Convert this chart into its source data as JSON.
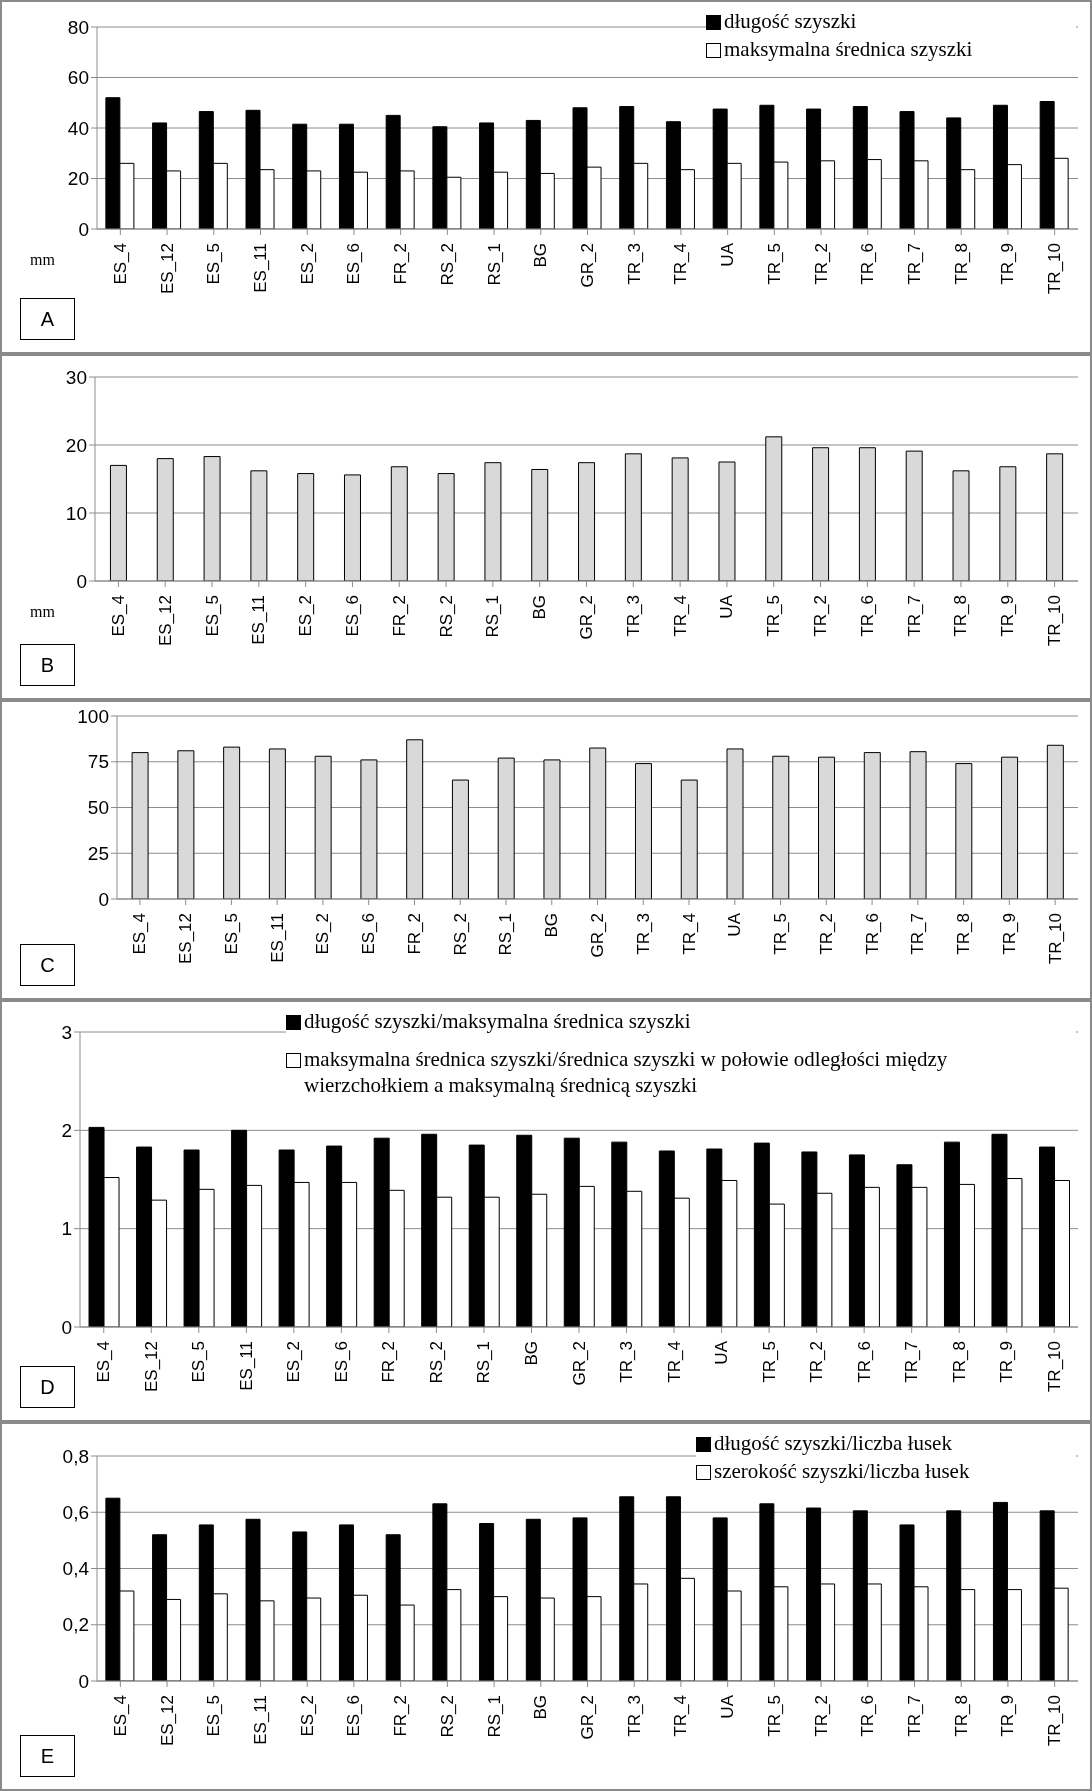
{
  "chart_data": [
    {
      "type": "bar",
      "categories": [
        "ES_4",
        "ES_12",
        "ES_5",
        "ES_11",
        "ES_2",
        "ES_6",
        "FR_2",
        "RS_2",
        "RS_1",
        "BG",
        "GR_2",
        "TR_3",
        "TR_4",
        "UA",
        "TR_5",
        "TR_2",
        "TR_6",
        "TR_7",
        "TR_8",
        "TR_9",
        "TR_10"
      ],
      "series": [
        {
          "name": "długość szyszki",
          "color": "#000000",
          "values": [
            52,
            42,
            46.5,
            47,
            41.5,
            41.5,
            45,
            40.5,
            42,
            43,
            48,
            48.5,
            42.5,
            47.5,
            49,
            47.5,
            48.5,
            46.5,
            44,
            49,
            50.5
          ]
        },
        {
          "name": "maksymalna średnica szyszki",
          "color": "#ffffff",
          "values": [
            26,
            23,
            26,
            23.5,
            23,
            22.5,
            23,
            20.5,
            22.5,
            22,
            24.5,
            26,
            23.5,
            26,
            26.5,
            27,
            27.5,
            27,
            23.5,
            25.5,
            28
          ]
        }
      ],
      "ylim": [
        0,
        80
      ],
      "yticks": [
        0,
        20,
        40,
        60,
        80
      ],
      "grid": "y",
      "legend": "top right",
      "annotations": [
        "mm",
        "A"
      ]
    },
    {
      "type": "bar",
      "categories": [
        "ES_4",
        "ES_12",
        "ES_5",
        "ES_11",
        "ES_2",
        "ES_6",
        "FR_2",
        "RS_2",
        "RS_1",
        "BG",
        "GR_2",
        "TR_3",
        "TR_4",
        "UA",
        "TR_5",
        "TR_2",
        "TR_6",
        "TR_7",
        "TR_8",
        "TR_9",
        "TR_10"
      ],
      "values": [
        17,
        18,
        18.3,
        16.2,
        15.8,
        15.6,
        16.8,
        15.8,
        17.4,
        16.4,
        17.4,
        18.7,
        18.1,
        17.5,
        21.2,
        19.6,
        19.6,
        19.1,
        16.2,
        16.8,
        18.7
      ],
      "color": "#d9d9d9",
      "ylim": [
        0,
        30
      ],
      "yticks": [
        0,
        10,
        20,
        30
      ],
      "grid": "y",
      "annotations": [
        "mm",
        "B"
      ]
    },
    {
      "type": "bar",
      "categories": [
        "ES_4",
        "ES_12",
        "ES_5",
        "ES_11",
        "ES_2",
        "ES_6",
        "FR_2",
        "RS_2",
        "RS_1",
        "BG",
        "GR_2",
        "TR_3",
        "TR_4",
        "UA",
        "TR_5",
        "TR_2",
        "TR_6",
        "TR_7",
        "TR_8",
        "TR_9",
        "TR_10"
      ],
      "values": [
        80,
        81,
        83,
        82,
        78,
        76,
        87,
        65,
        77,
        76,
        82.5,
        74,
        65,
        82,
        78,
        77.5,
        80,
        80.5,
        74,
        77.5,
        84
      ],
      "color": "#d9d9d9",
      "ylim": [
        0,
        100
      ],
      "yticks": [
        0,
        25,
        50,
        75,
        100
      ],
      "grid": "y",
      "annotations": [
        "C"
      ]
    },
    {
      "type": "bar",
      "categories": [
        "ES_4",
        "ES_12",
        "ES_5",
        "ES_11",
        "ES_2",
        "ES_6",
        "FR_2",
        "RS_2",
        "RS_1",
        "BG",
        "GR_2",
        "TR_3",
        "TR_4",
        "UA",
        "TR_5",
        "TR_2",
        "TR_6",
        "TR_7",
        "TR_8",
        "TR_9",
        "TR_10"
      ],
      "series": [
        {
          "name": "długość szyszki/maksymalna średnica szyszki",
          "color": "#000000",
          "values": [
            2.03,
            1.83,
            1.8,
            2.0,
            1.8,
            1.84,
            1.92,
            1.96,
            1.85,
            1.95,
            1.92,
            1.88,
            1.79,
            1.81,
            1.87,
            1.78,
            1.75,
            1.65,
            1.88,
            1.96,
            1.83
          ]
        },
        {
          "name": "maksymalna średnica szyszki/średnica szyszki w połowie odległości między wierzchołkiem a maksymalną średnicą szyszki",
          "color": "#ffffff",
          "values": [
            1.52,
            1.29,
            1.4,
            1.44,
            1.47,
            1.47,
            1.39,
            1.32,
            1.32,
            1.35,
            1.43,
            1.38,
            1.31,
            1.49,
            1.25,
            1.36,
            1.42,
            1.42,
            1.45,
            1.51,
            1.49
          ]
        }
      ],
      "ylim": [
        0,
        3
      ],
      "yticks": [
        0,
        1,
        2,
        3
      ],
      "grid": "y",
      "legend": "top right",
      "annotations": [
        "D"
      ]
    },
    {
      "type": "bar",
      "categories": [
        "ES_4",
        "ES_12",
        "ES_5",
        "ES_11",
        "ES_2",
        "ES_6",
        "FR_2",
        "RS_2",
        "RS_1",
        "BG",
        "GR_2",
        "TR_3",
        "TR_4",
        "UA",
        "TR_5",
        "TR_2",
        "TR_6",
        "TR_7",
        "TR_8",
        "TR_9",
        "TR_10"
      ],
      "series": [
        {
          "name": "długość szyszki/liczba łusek",
          "color": "#000000",
          "values": [
            0.65,
            0.52,
            0.555,
            0.575,
            0.53,
            0.555,
            0.52,
            0.63,
            0.56,
            0.575,
            0.58,
            0.655,
            0.655,
            0.58,
            0.63,
            0.615,
            0.605,
            0.555,
            0.605,
            0.635,
            0.605
          ]
        },
        {
          "name": "szerokość szyszki/liczba łusek",
          "color": "#ffffff",
          "values": [
            0.32,
            0.29,
            0.31,
            0.285,
            0.295,
            0.305,
            0.27,
            0.325,
            0.3,
            0.295,
            0.3,
            0.345,
            0.365,
            0.32,
            0.335,
            0.345,
            0.345,
            0.335,
            0.325,
            0.325,
            0.33
          ]
        }
      ],
      "ylim": [
        0,
        0.8
      ],
      "yticks": [
        0,
        {
          "value": 0.2,
          "label": "0,2"
        },
        {
          "value": 0.4,
          "label": "0,4"
        },
        {
          "value": 0.6,
          "label": "0,6"
        },
        {
          "value": 0.8,
          "label": "0,8"
        }
      ],
      "grid": "y",
      "legend": "top right",
      "annotations": [
        "E"
      ]
    }
  ]
}
